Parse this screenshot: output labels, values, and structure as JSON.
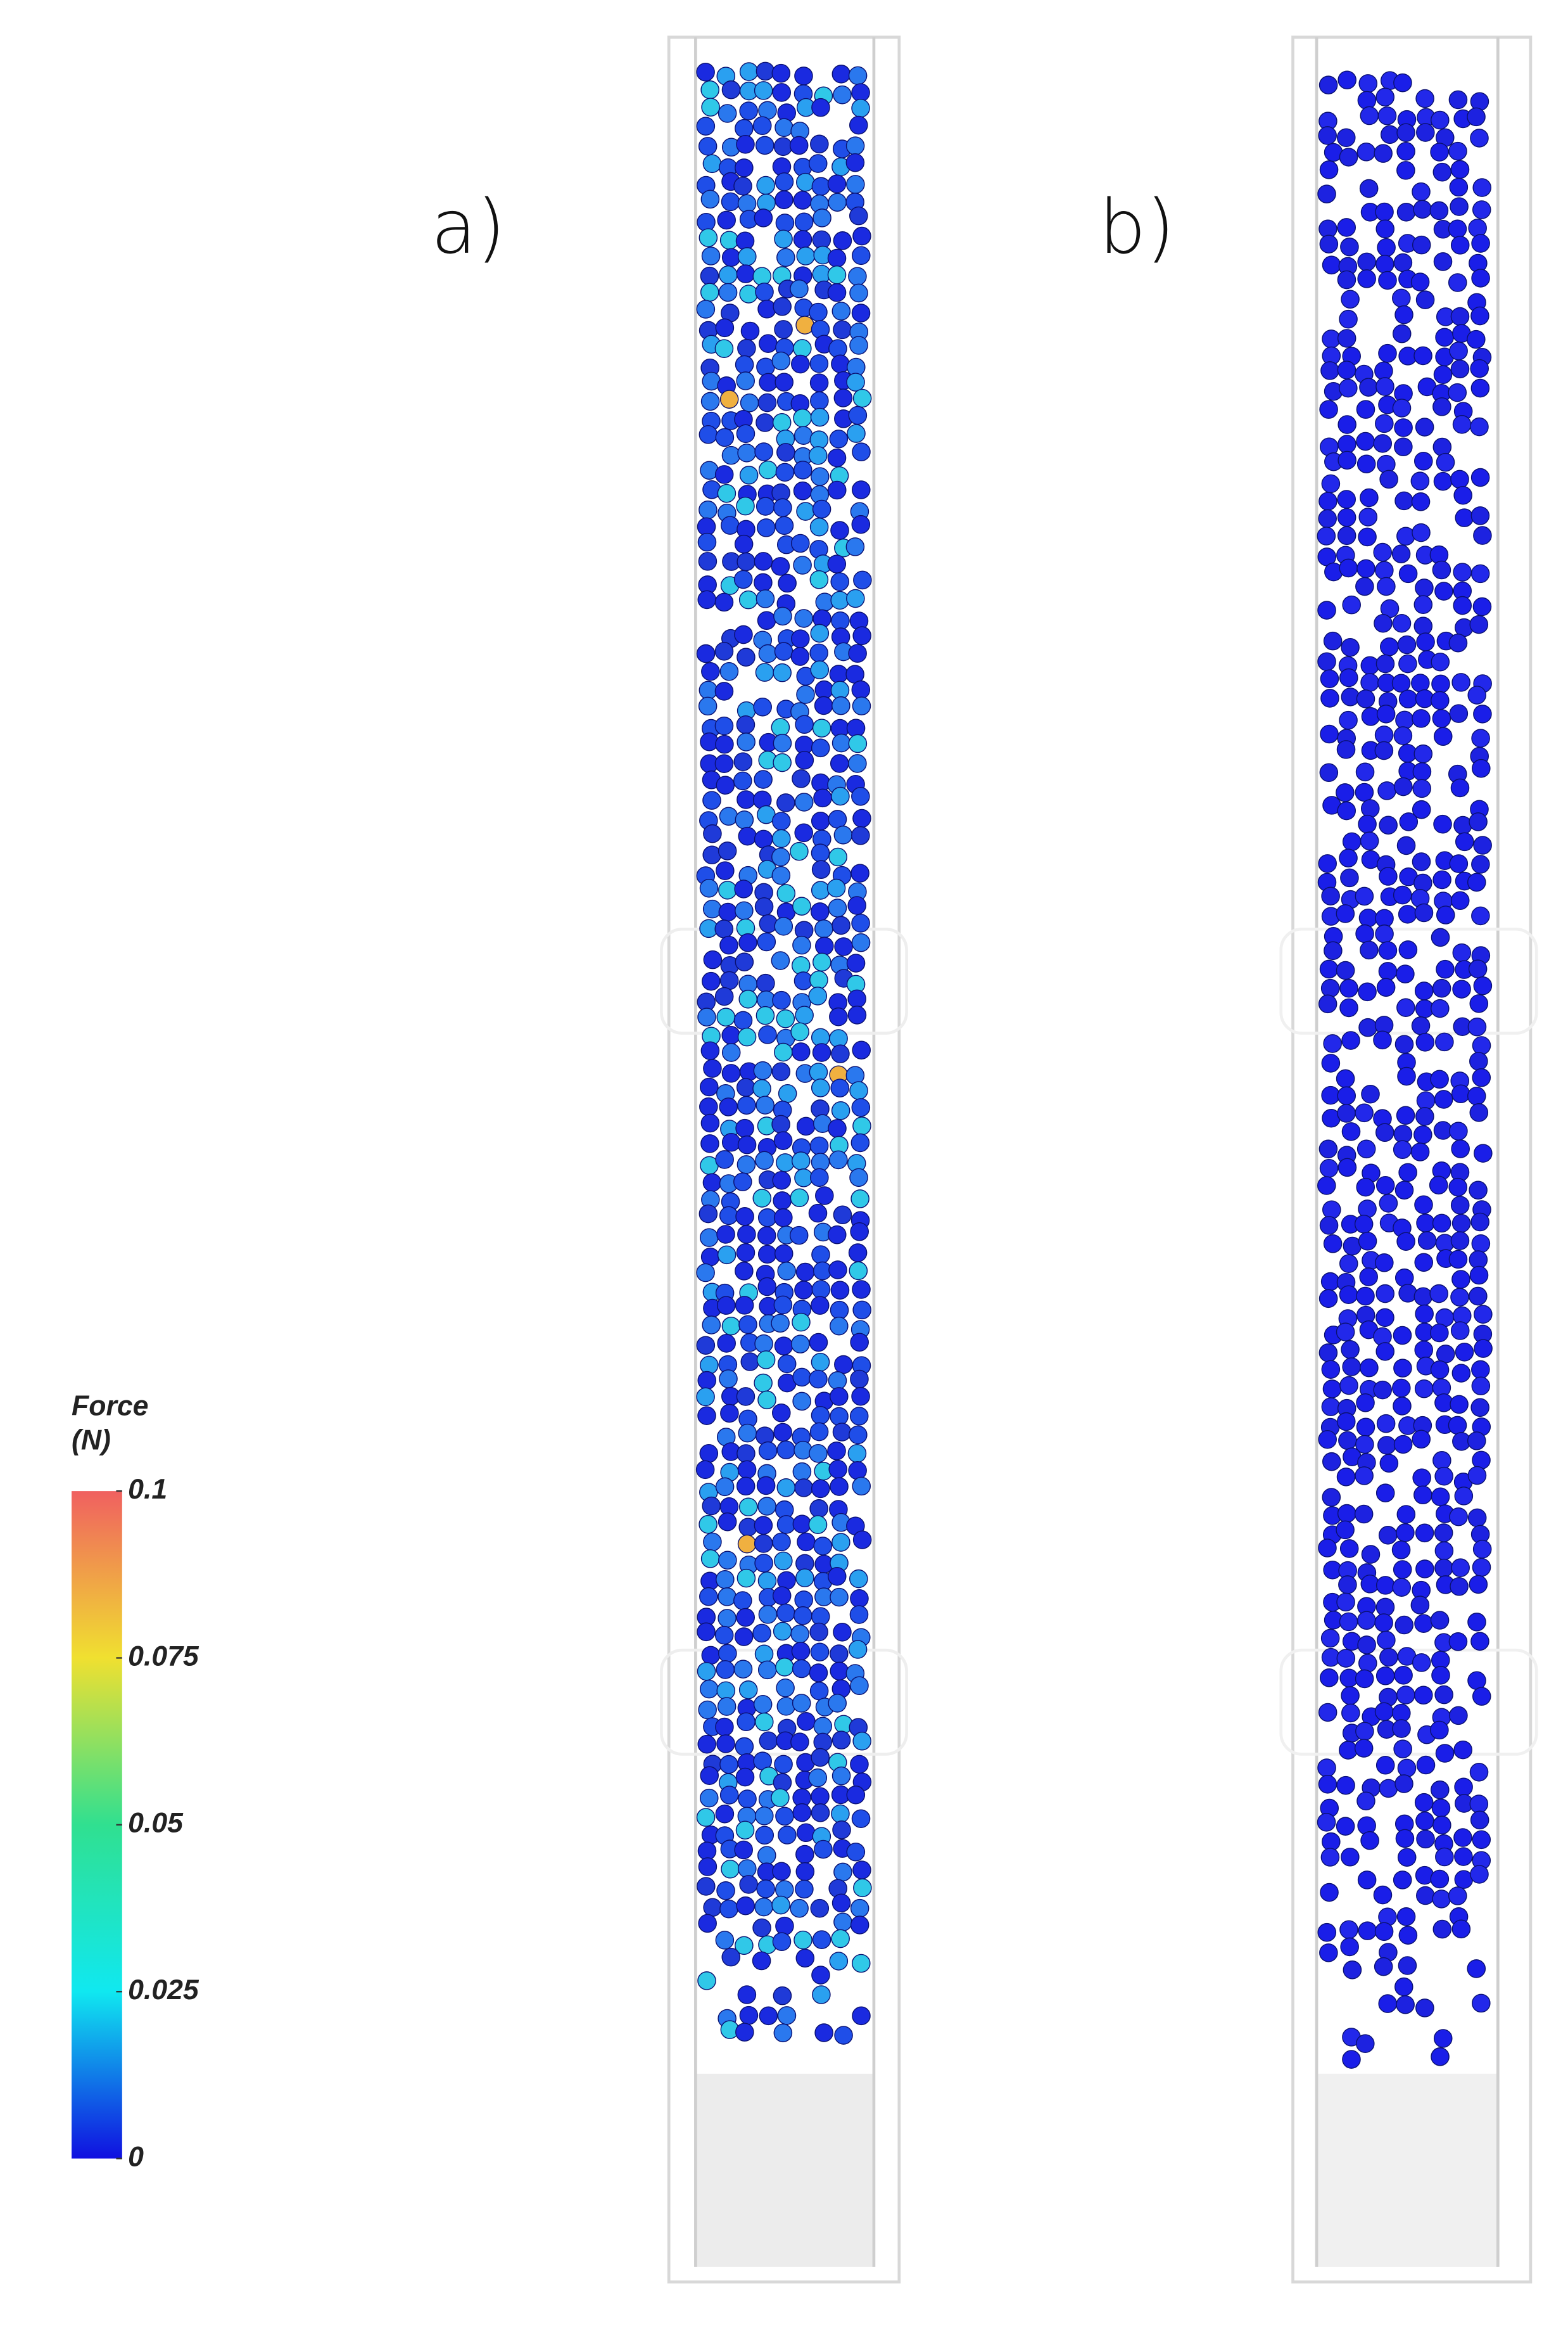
{
  "panels": [
    {
      "label": "a)"
    },
    {
      "label": "b)"
    }
  ],
  "colorbar": {
    "title": [
      "Force",
      "(N)"
    ],
    "range": [
      0,
      0.1
    ],
    "ticks": [
      0.1,
      0.075,
      0.05,
      0.025,
      0
    ]
  }
}
